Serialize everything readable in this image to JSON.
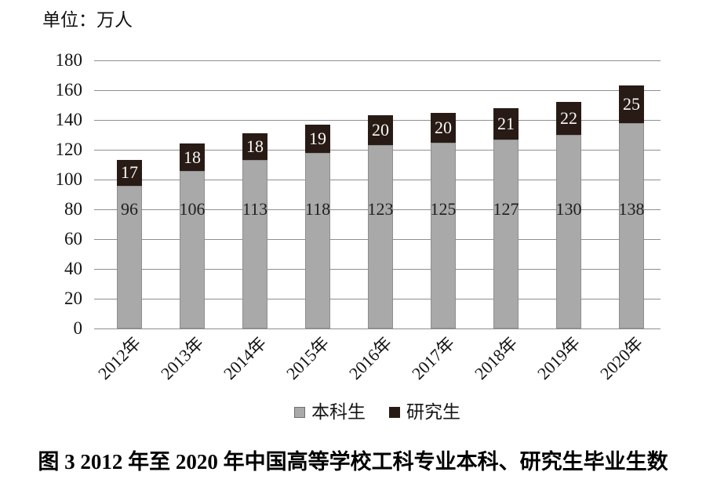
{
  "figure": {
    "caption": "图 3  2012 年至 2020 年中国高等学校工科专业本科、研究生毕业生数"
  },
  "colors": {
    "undergrad_fill": "#a9a9a9",
    "undergrad_border": "#8e8e8e",
    "grad_fill": "#281b15",
    "gridline": "#8f8f8f",
    "value_label_dark": "#1f1f1f",
    "value_label_light": "#faf8f6",
    "text": "#141414"
  },
  "chart_data": {
    "type": "bar",
    "stacked": true,
    "title": "图 3  2012 年至 2020 年中国高等学校工科专业本科、研究生毕业生数",
    "unit_label": "单位：万人",
    "categories": [
      "2012年",
      "2013年",
      "2014年",
      "2015年",
      "2016年",
      "2017年",
      "2018年",
      "2019年",
      "2020年"
    ],
    "series": [
      {
        "name": "本科生",
        "color": "#a9a9a9",
        "values": [
          96,
          106,
          113,
          118,
          123,
          125,
          127,
          130,
          138
        ]
      },
      {
        "name": "研究生",
        "color": "#281b15",
        "values": [
          17,
          18,
          18,
          19,
          20,
          20,
          21,
          22,
          25
        ]
      }
    ],
    "totals": [
      113,
      124,
      131,
      137,
      143,
      145,
      148,
      152,
      163
    ],
    "ylim": [
      0,
      180
    ],
    "ytick_step": 20,
    "yticks": [
      0,
      20,
      40,
      60,
      80,
      100,
      120,
      140,
      160,
      180
    ],
    "grid": true,
    "legend_position": "bottom",
    "x_tick_rotation": -45
  }
}
